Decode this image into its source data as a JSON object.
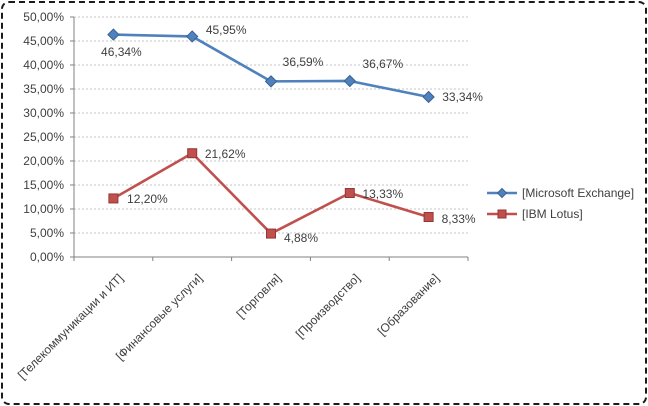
{
  "chart_data": {
    "type": "line",
    "title": "",
    "xlabel": "",
    "ylabel": "",
    "categories": [
      "[Телекоммуникации и ИТ]",
      "[Финансовые услуги]",
      "[Торговля]",
      "[Производство]",
      "[Образование]"
    ],
    "series": [
      {
        "name": "[Microsoft Exchange]",
        "marker": "diamond",
        "color": "#4F81BD",
        "marker_edge": "#3A6194",
        "values": [
          46.34,
          45.95,
          36.59,
          36.67,
          33.34
        ],
        "labels": [
          "46,34%",
          "45,95%",
          "36,59%",
          "36,67%",
          "33,34%"
        ],
        "label_offsets": [
          [
            8,
            18
          ],
          [
            34,
            -5
          ],
          [
            32,
            -18
          ],
          [
            33,
            -16
          ],
          [
            34,
            1
          ]
        ]
      },
      {
        "name": "[IBM Lotus]",
        "marker": "square",
        "color": "#C0504D",
        "marker_edge": "#943634",
        "values": [
          12.2,
          21.62,
          4.88,
          13.33,
          8.33
        ],
        "labels": [
          "12,20%",
          "21,62%",
          "4,88%",
          "13,33%",
          "8,33%"
        ],
        "label_offsets": [
          [
            34,
            2
          ],
          [
            33,
            2
          ],
          [
            30,
            5
          ],
          [
            33,
            2
          ],
          [
            30,
            3
          ]
        ]
      }
    ],
    "y_axis": {
      "min": 0,
      "max": 50,
      "step": 5,
      "tick_labels": [
        "0,00%",
        "5,00%",
        "10,00%",
        "15,00%",
        "20,00%",
        "25,00%",
        "30,00%",
        "35,00%",
        "40,00%",
        "45,00%",
        "50,00%"
      ]
    },
    "grid": true,
    "legend_position": "right",
    "colors": {
      "grid_line": "#C6C6C6",
      "axis_line": "#808080",
      "text": "#3F3F3F",
      "frame_border": "#1b1b1b",
      "background": "#FFFFFF"
    }
  }
}
